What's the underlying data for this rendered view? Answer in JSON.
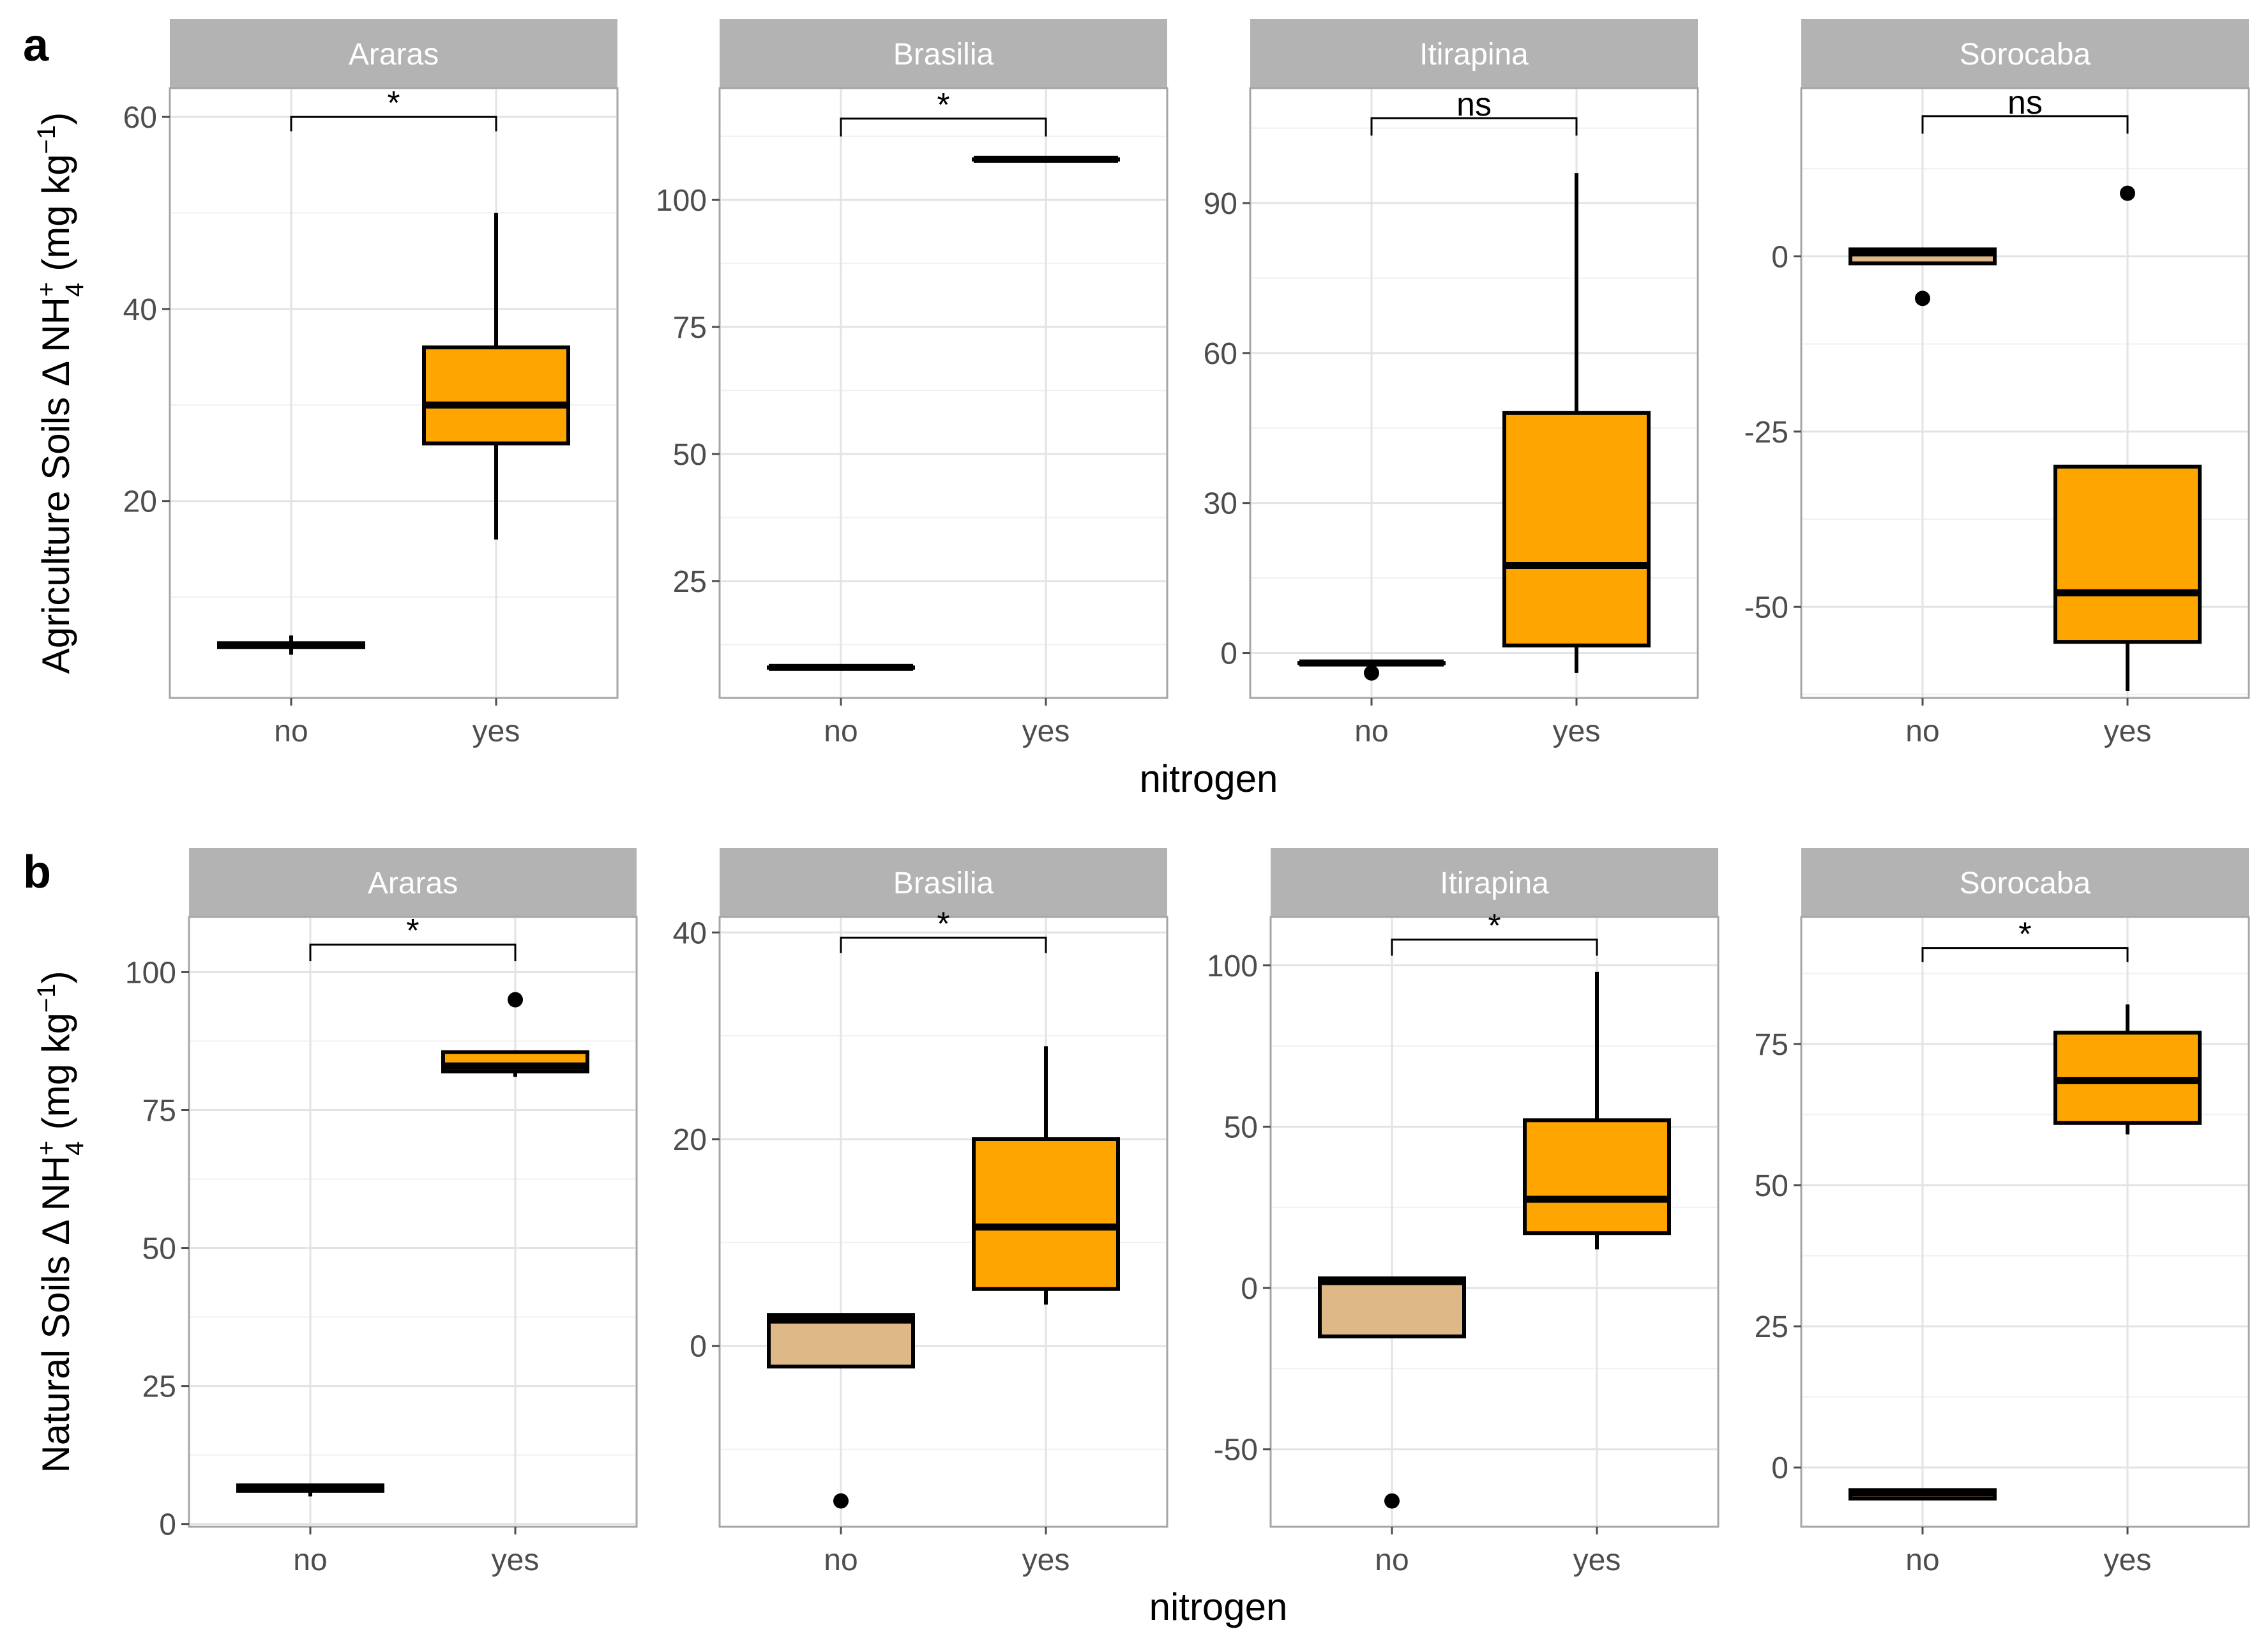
{
  "figure": {
    "x_axis_title": "nitrogen",
    "colors": {
      "no": "#DEB887",
      "yes": "#FFA500"
    }
  },
  "chart_data": [
    {
      "type": "box",
      "row": "a",
      "ylabel": "Agriculture Soils Δ NH4+ (mg kg−1)",
      "facets": [
        {
          "title": "Araras",
          "ylim": [
            -0.5,
            63
          ],
          "yticks": [
            20,
            40,
            60
          ],
          "categories": [
            "no",
            "yes"
          ],
          "boxes": [
            {
              "x": "no",
              "whisker_low": 4,
              "q1": 4.8,
              "median": 5,
              "q3": 5.2,
              "whisker_high": 6,
              "outliers": []
            },
            {
              "x": "yes",
              "whisker_low": 16,
              "q1": 26,
              "median": 30,
              "q3": 36,
              "whisker_high": 50,
              "outliers": []
            }
          ],
          "significance": {
            "label": "*",
            "y": 60,
            "drop": 1.5
          }
        },
        {
          "title": "Brasilia",
          "ylim": [
            2,
            122
          ],
          "yticks": [
            25,
            50,
            75,
            100
          ],
          "categories": [
            "no",
            "yes"
          ],
          "boxes": [
            {
              "x": "no",
              "whisker_low": 8,
              "q1": 8,
              "median": 8,
              "q3": 8,
              "whisker_high": 8,
              "outliers": []
            },
            {
              "x": "yes",
              "whisker_low": 108,
              "q1": 108,
              "median": 108,
              "q3": 108,
              "whisker_high": 108,
              "outliers": []
            }
          ],
          "significance": {
            "label": "*",
            "y": 116,
            "drop": 3.5
          }
        },
        {
          "title": "Itirapina",
          "ylim": [
            -9,
            113
          ],
          "yticks": [
            0,
            30,
            60,
            90
          ],
          "categories": [
            "no",
            "yes"
          ],
          "boxes": [
            {
              "x": "no",
              "whisker_low": -2,
              "q1": -2,
              "median": -2,
              "q3": -2,
              "whisker_high": -2,
              "outliers": [
                -4
              ]
            },
            {
              "x": "yes",
              "whisker_low": -4,
              "q1": 1.5,
              "median": 17.5,
              "q3": 48,
              "whisker_high": 96,
              "outliers": []
            }
          ],
          "significance": {
            "label": "ns",
            "y": 107,
            "drop": 3.5
          }
        },
        {
          "title": "Sorocaba",
          "ylim": [
            -63,
            24
          ],
          "yticks": [
            -50,
            -25,
            0
          ],
          "categories": [
            "no",
            "yes"
          ],
          "boxes": [
            {
              "x": "no",
              "whisker_low": -1,
              "q1": -1,
              "median": 0.5,
              "q3": 1,
              "whisker_high": 1,
              "outliers": [
                -6
              ]
            },
            {
              "x": "yes",
              "whisker_low": -62,
              "q1": -55,
              "median": -48,
              "q3": -30,
              "whisker_high": -30,
              "outliers": [
                9
              ]
            }
          ],
          "significance": {
            "label": "ns",
            "y": 20,
            "drop": 2.5
          }
        }
      ]
    },
    {
      "type": "box",
      "row": "b",
      "ylabel": "Natural Soils Δ NH4+ (mg kg−1)",
      "facets": [
        {
          "title": "Araras",
          "ylim": [
            -0.5,
            110
          ],
          "yticks": [
            0,
            25,
            50,
            75,
            100
          ],
          "categories": [
            "no",
            "yes"
          ],
          "boxes": [
            {
              "x": "no",
              "whisker_low": 5,
              "q1": 6,
              "median": 6.5,
              "q3": 7,
              "whisker_high": 7,
              "outliers": []
            },
            {
              "x": "yes",
              "whisker_low": 81,
              "q1": 82,
              "median": 83,
              "q3": 85.5,
              "whisker_high": 85.5,
              "outliers": [
                95
              ]
            }
          ],
          "significance": {
            "label": "*",
            "y": 105,
            "drop": 3
          }
        },
        {
          "title": "Brasilia",
          "ylim": [
            -17.5,
            41.5
          ],
          "yticks": [
            0,
            20,
            40
          ],
          "categories": [
            "no",
            "yes"
          ],
          "boxes": [
            {
              "x": "no",
              "whisker_low": -2,
              "q1": -2,
              "median": 2.5,
              "q3": 3,
              "whisker_high": 3,
              "outliers": [
                -15
              ]
            },
            {
              "x": "yes",
              "whisker_low": 4,
              "q1": 5.5,
              "median": 11.5,
              "q3": 20,
              "whisker_high": 29,
              "outliers": []
            }
          ],
          "significance": {
            "label": "*",
            "y": 39.5,
            "drop": 1.5
          }
        },
        {
          "title": "Itirapina",
          "ylim": [
            -74,
            115
          ],
          "yticks": [
            -50,
            0,
            50,
            100
          ],
          "categories": [
            "no",
            "yes"
          ],
          "boxes": [
            {
              "x": "no",
              "whisker_low": -15,
              "q1": -15,
              "median": 2,
              "q3": 3,
              "whisker_high": 3,
              "outliers": [
                -66
              ]
            },
            {
              "x": "yes",
              "whisker_low": 12,
              "q1": 17,
              "median": 27.5,
              "q3": 52,
              "whisker_high": 98,
              "outliers": []
            }
          ],
          "significance": {
            "label": "*",
            "y": 108,
            "drop": 5
          }
        },
        {
          "title": "Sorocaba",
          "ylim": [
            -10.5,
            97.5
          ],
          "yticks": [
            0,
            25,
            50,
            75
          ],
          "categories": [
            "no",
            "yes"
          ],
          "boxes": [
            {
              "x": "no",
              "whisker_low": -5.5,
              "q1": -5.5,
              "median": -4.5,
              "q3": -4,
              "whisker_high": -4,
              "outliers": []
            },
            {
              "x": "yes",
              "whisker_low": 59,
              "q1": 61,
              "median": 68.5,
              "q3": 77,
              "whisker_high": 82,
              "outliers": []
            }
          ],
          "significance": {
            "label": "*",
            "y": 92,
            "drop": 2.5
          }
        }
      ]
    }
  ]
}
